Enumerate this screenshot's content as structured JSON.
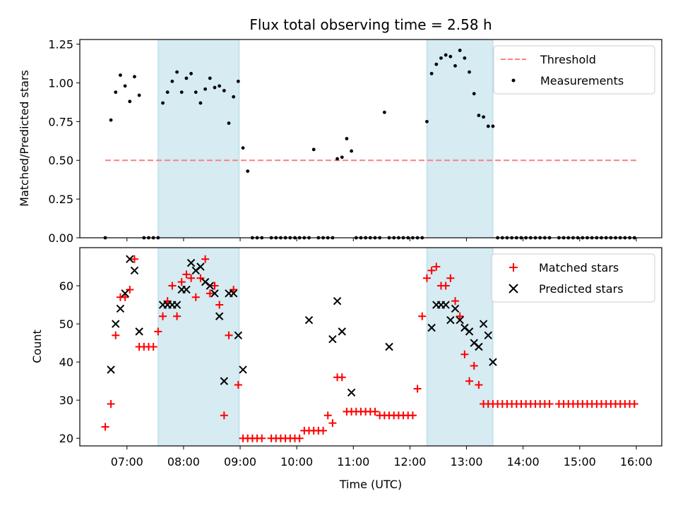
{
  "chart_data": [
    {
      "type": "scatter",
      "title": "Flux total observing time = 2.58 h",
      "ylabel": "Matched/Predicted stars",
      "xlabel": "",
      "xlim": [
        "06:10",
        "16:27"
      ],
      "ylim": [
        0,
        1.28
      ],
      "yticks": [
        0.0,
        0.25,
        0.5,
        0.75,
        1.0,
        1.25
      ],
      "ytick_labels": [
        "0.00",
        "0.25",
        "0.50",
        "0.75",
        "1.00",
        "1.25"
      ],
      "xticks": [
        "07:00",
        "08:00",
        "09:00",
        "10:00",
        "11:00",
        "12:00",
        "13:00",
        "14:00",
        "15:00",
        "16:00"
      ],
      "shaded_spans": [
        {
          "start": "07:33",
          "end": "08:59"
        },
        {
          "start": "12:18",
          "end": "13:28"
        }
      ],
      "threshold": {
        "name": "Threshold",
        "value": 0.5,
        "x_start": "06:37",
        "x_end": "16:00",
        "color": "#ff7f7f"
      },
      "series": [
        {
          "name": "Measurements",
          "color": "#000000",
          "marker": "dot",
          "x": [
            "06:37",
            "06:43",
            "06:48",
            "06:53",
            "06:58",
            "07:03",
            "07:08",
            "07:13",
            "07:18",
            "07:23",
            "07:28",
            "07:33",
            "07:38",
            "07:43",
            "07:48",
            "07:53",
            "07:58",
            "08:03",
            "08:08",
            "08:13",
            "08:18",
            "08:23",
            "08:28",
            "08:33",
            "08:38",
            "08:43",
            "08:48",
            "08:53",
            "08:58",
            "09:03",
            "09:08",
            "09:13",
            "09:18",
            "09:23",
            "09:33",
            "09:38",
            "09:43",
            "09:48",
            "09:53",
            "09:58",
            "10:03",
            "10:08",
            "10:13",
            "10:18",
            "10:23",
            "10:28",
            "10:33",
            "10:38",
            "10:43",
            "10:48",
            "10:53",
            "10:58",
            "11:03",
            "11:08",
            "11:13",
            "11:18",
            "11:23",
            "11:28",
            "11:33",
            "11:38",
            "11:43",
            "11:48",
            "11:53",
            "11:58",
            "12:03",
            "12:08",
            "12:13",
            "12:18",
            "12:23",
            "12:28",
            "12:33",
            "12:38",
            "12:43",
            "12:48",
            "12:53",
            "12:58",
            "13:03",
            "13:08",
            "13:13",
            "13:18",
            "13:23",
            "13:28",
            "13:33",
            "13:38",
            "13:43",
            "13:48",
            "13:53",
            "13:58",
            "14:03",
            "14:08",
            "14:13",
            "14:18",
            "14:23",
            "14:28",
            "14:38",
            "14:43",
            "14:48",
            "14:53",
            "14:58",
            "15:03",
            "15:08",
            "15:13",
            "15:18",
            "15:23",
            "15:28",
            "15:33",
            "15:38",
            "15:43",
            "15:48",
            "15:53",
            "15:58"
          ],
          "y": [
            0,
            0.76,
            0.94,
            1.05,
            0.98,
            0.88,
            1.04,
            0.92,
            0,
            0,
            0,
            0,
            0.87,
            0.94,
            1.01,
            1.07,
            0.94,
            1.03,
            1.06,
            0.94,
            0.87,
            0.96,
            1.03,
            0.97,
            0.98,
            0.95,
            0.74,
            0.91,
            1.01,
            0.58,
            0.43,
            0,
            0,
            0,
            0,
            0,
            0,
            0,
            0,
            0,
            0,
            0,
            0,
            0.57,
            0,
            0,
            0,
            0,
            0.51,
            0.52,
            0.64,
            0.56,
            0,
            0,
            0,
            0,
            0,
            0,
            0.81,
            0,
            0,
            0,
            0,
            0,
            0,
            0,
            0,
            0.75,
            1.06,
            1.12,
            1.16,
            1.18,
            1.17,
            1.11,
            1.21,
            1.16,
            1.07,
            0.93,
            0.79,
            0.78,
            0.72,
            0.72,
            0,
            0,
            0,
            0,
            0,
            0,
            0,
            0,
            0,
            0,
            0,
            0,
            0,
            0,
            0,
            0,
            0,
            0,
            0,
            0,
            0,
            0,
            0,
            0,
            0,
            0,
            0,
            0,
            0
          ]
        }
      ],
      "legend": {
        "position": "top-right",
        "entries": [
          "Threshold",
          "Measurements"
        ]
      }
    },
    {
      "type": "scatter",
      "title": "",
      "ylabel": "Count",
      "xlabel": "Time (UTC)",
      "xlim": [
        "06:10",
        "16:27"
      ],
      "ylim": [
        18,
        70
      ],
      "yticks": [
        20,
        30,
        40,
        50,
        60
      ],
      "ytick_labels": [
        "20",
        "30",
        "40",
        "50",
        "60"
      ],
      "xticks": [
        "07:00",
        "08:00",
        "09:00",
        "10:00",
        "11:00",
        "12:00",
        "13:00",
        "14:00",
        "15:00",
        "16:00"
      ],
      "shaded_spans": [
        {
          "start": "07:33",
          "end": "08:59"
        },
        {
          "start": "12:18",
          "end": "13:28"
        }
      ],
      "series": [
        {
          "name": "Matched stars",
          "color": "#ff0000",
          "marker": "plus",
          "x": [
            "06:37",
            "06:43",
            "06:48",
            "06:53",
            "06:58",
            "07:03",
            "07:08",
            "07:13",
            "07:18",
            "07:23",
            "07:28",
            "07:33",
            "07:38",
            "07:43",
            "07:48",
            "07:53",
            "07:58",
            "08:03",
            "08:08",
            "08:13",
            "08:18",
            "08:23",
            "08:28",
            "08:33",
            "08:38",
            "08:43",
            "08:48",
            "08:53",
            "08:58",
            "09:03",
            "09:08",
            "09:13",
            "09:18",
            "09:23",
            "09:33",
            "09:38",
            "09:43",
            "09:48",
            "09:53",
            "09:58",
            "10:03",
            "10:08",
            "10:13",
            "10:18",
            "10:23",
            "10:28",
            "10:33",
            "10:38",
            "10:43",
            "10:48",
            "10:53",
            "10:58",
            "11:03",
            "11:08",
            "11:13",
            "11:18",
            "11:23",
            "11:28",
            "11:33",
            "11:38",
            "11:43",
            "11:48",
            "11:53",
            "11:58",
            "12:03",
            "12:08",
            "12:13",
            "12:18",
            "12:23",
            "12:28",
            "12:33",
            "12:38",
            "12:43",
            "12:48",
            "12:53",
            "12:58",
            "13:03",
            "13:08",
            "13:13",
            "13:18",
            "13:23",
            "13:28",
            "13:33",
            "13:38",
            "13:43",
            "13:48",
            "13:53",
            "13:58",
            "14:03",
            "14:08",
            "14:13",
            "14:18",
            "14:23",
            "14:28",
            "14:38",
            "14:43",
            "14:48",
            "14:53",
            "14:58",
            "15:03",
            "15:08",
            "15:13",
            "15:18",
            "15:23",
            "15:28",
            "15:33",
            "15:38",
            "15:43",
            "15:48",
            "15:53",
            "15:58"
          ],
          "y": [
            23,
            29,
            47,
            57,
            57,
            59,
            67,
            44,
            44,
            44,
            44,
            48,
            52,
            56,
            60,
            52,
            61,
            63,
            62,
            57,
            62,
            67,
            58,
            60,
            55,
            26,
            47,
            59,
            34,
            20,
            20,
            20,
            20,
            20,
            20,
            20,
            20,
            20,
            20,
            20,
            20,
            22,
            22,
            22,
            22,
            22,
            26,
            24,
            36,
            36,
            27,
            27,
            27,
            27,
            27,
            27,
            27,
            26,
            26,
            26,
            26,
            26,
            26,
            26,
            26,
            33,
            52,
            62,
            64,
            65,
            60,
            60,
            62,
            56,
            52,
            42,
            35,
            39,
            34,
            29,
            29,
            29,
            29,
            29,
            29,
            29,
            29,
            29,
            29,
            29,
            29,
            29,
            29,
            29,
            29,
            29,
            29,
            29,
            29,
            29,
            29,
            29,
            29,
            29,
            29,
            29,
            29,
            29,
            29,
            29,
            29
          ]
        },
        {
          "name": "Predicted stars",
          "color": "#000000",
          "marker": "x",
          "x": [
            "06:43",
            "06:48",
            "06:53",
            "06:58",
            "07:03",
            "07:08",
            "07:13",
            "07:38",
            "07:43",
            "07:48",
            "07:53",
            "07:58",
            "08:03",
            "08:08",
            "08:13",
            "08:18",
            "08:23",
            "08:28",
            "08:33",
            "08:38",
            "08:43",
            "08:48",
            "08:53",
            "08:58",
            "09:03",
            "10:13",
            "10:38",
            "10:43",
            "10:48",
            "10:58",
            "11:38",
            "12:23",
            "12:28",
            "12:33",
            "12:38",
            "12:43",
            "12:48",
            "12:53",
            "12:58",
            "13:03",
            "13:08",
            "13:13",
            "13:18",
            "13:23",
            "13:28"
          ],
          "y": [
            38,
            50,
            54,
            58,
            67,
            64,
            48,
            55,
            55,
            55,
            55,
            59,
            59,
            66,
            64,
            65,
            61,
            60,
            58,
            52,
            35,
            58,
            58,
            47,
            38,
            51,
            46,
            56,
            48,
            32,
            44,
            49,
            55,
            55,
            55,
            51,
            54,
            51,
            49,
            48,
            45,
            44,
            50,
            47,
            40
          ]
        }
      ],
      "legend": {
        "position": "top-right",
        "entries": [
          "Matched stars",
          "Predicted stars"
        ]
      }
    }
  ]
}
